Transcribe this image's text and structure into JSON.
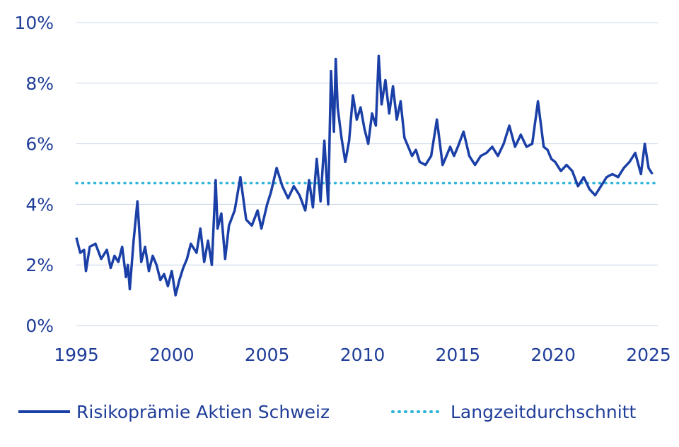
{
  "chart_data": {
    "type": "line",
    "title": "",
    "xlabel": "",
    "ylabel": "",
    "xlim": [
      1995,
      2025.3
    ],
    "ylim": [
      0,
      10
    ],
    "grid": true,
    "legend_position": "bottom",
    "x_ticks": [
      "1995",
      "2000",
      "2005",
      "2010",
      "2015",
      "2020",
      "2025"
    ],
    "y_ticks": [
      "0%",
      "2%",
      "4%",
      "6%",
      "8%",
      "10%"
    ],
    "series": [
      {
        "name": "Risikoprämie Aktien Schweiz",
        "color": "#1a3fa6",
        "style": "solid",
        "x": [
          1995.0,
          1995.2,
          1995.4,
          1995.5,
          1995.7,
          1996.0,
          1996.3,
          1996.6,
          1996.8,
          1997.0,
          1997.2,
          1997.4,
          1997.6,
          1997.7,
          1997.8,
          1998.0,
          1998.2,
          1998.4,
          1998.6,
          1998.8,
          1999.0,
          1999.2,
          1999.4,
          1999.6,
          1999.8,
          2000.0,
          2000.2,
          2000.4,
          2000.6,
          2000.8,
          2001.0,
          2001.3,
          2001.5,
          2001.7,
          2001.9,
          2002.1,
          2002.3,
          2002.4,
          2002.6,
          2002.8,
          2003.0,
          2003.3,
          2003.6,
          2003.9,
          2004.2,
          2004.5,
          2004.7,
          2005.0,
          2005.2,
          2005.5,
          2005.8,
          2006.1,
          2006.4,
          2006.7,
          2007.0,
          2007.2,
          2007.4,
          2007.6,
          2007.8,
          2008.0,
          2008.2,
          2008.35,
          2008.5,
          2008.6,
          2008.7,
          2008.9,
          2009.1,
          2009.3,
          2009.5,
          2009.7,
          2009.9,
          2010.1,
          2010.3,
          2010.5,
          2010.7,
          2010.85,
          2011.0,
          2011.2,
          2011.4,
          2011.6,
          2011.8,
          2012.0,
          2012.2,
          2012.4,
          2012.6,
          2012.8,
          2013.0,
          2013.3,
          2013.6,
          2013.9,
          2014.2,
          2014.4,
          2014.6,
          2014.8,
          2015.0,
          2015.3,
          2015.6,
          2015.9,
          2016.2,
          2016.5,
          2016.8,
          2017.1,
          2017.4,
          2017.7,
          2018.0,
          2018.3,
          2018.6,
          2018.9,
          2019.2,
          2019.5,
          2019.7,
          2019.9,
          2020.1,
          2020.4,
          2020.7,
          2021.0,
          2021.3,
          2021.6,
          2021.9,
          2022.2,
          2022.5,
          2022.8,
          2023.1,
          2023.4,
          2023.7,
          2024.0,
          2024.3,
          2024.6,
          2024.8,
          2025.0,
          2025.2
        ],
        "values": [
          2.9,
          2.4,
          2.5,
          1.8,
          2.6,
          2.7,
          2.2,
          2.5,
          1.9,
          2.3,
          2.1,
          2.6,
          1.6,
          2.0,
          1.2,
          2.8,
          4.1,
          2.1,
          2.6,
          1.8,
          2.3,
          2.0,
          1.5,
          1.7,
          1.3,
          1.8,
          1.0,
          1.5,
          1.9,
          2.2,
          2.7,
          2.4,
          3.2,
          2.1,
          2.8,
          2.0,
          4.8,
          3.2,
          3.7,
          2.2,
          3.3,
          3.8,
          4.9,
          3.5,
          3.3,
          3.8,
          3.2,
          4.0,
          4.4,
          5.2,
          4.6,
          4.2,
          4.6,
          4.3,
          3.8,
          4.8,
          3.9,
          5.5,
          4.1,
          6.1,
          4.0,
          8.4,
          6.4,
          8.8,
          7.2,
          6.2,
          5.4,
          6.1,
          7.6,
          6.8,
          7.2,
          6.5,
          6.0,
          7.0,
          6.6,
          8.9,
          7.3,
          8.1,
          7.0,
          7.9,
          6.8,
          7.4,
          6.2,
          5.9,
          5.6,
          5.8,
          5.4,
          5.3,
          5.6,
          6.8,
          5.3,
          5.6,
          5.9,
          5.6,
          5.9,
          6.4,
          5.6,
          5.3,
          5.6,
          5.7,
          5.9,
          5.6,
          6.0,
          6.6,
          5.9,
          6.3,
          5.9,
          6.0,
          7.4,
          5.9,
          5.8,
          5.5,
          5.4,
          5.1,
          5.3,
          5.1,
          4.6,
          4.9,
          4.5,
          4.3,
          4.6,
          4.9,
          5.0,
          4.9,
          5.2,
          5.4,
          5.7,
          5.0,
          6.0,
          5.2,
          5.0
        ]
      },
      {
        "name": "Langzeitdurchschnitt",
        "color": "#2eb4d9",
        "style": "dotted",
        "x": [
          1995.0,
          2025.3
        ],
        "values": [
          4.7,
          4.7
        ]
      }
    ]
  }
}
